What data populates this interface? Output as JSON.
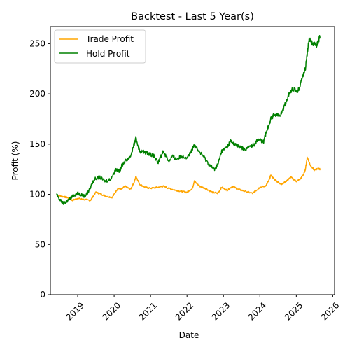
{
  "chart_data": {
    "type": "line",
    "title": "Backtest - Last 5 Year(s)",
    "xlabel": "Date",
    "ylabel": "Profit (%)",
    "xlim": [
      2018.25,
      2026.05
    ],
    "ylim": [
      0,
      267
    ],
    "x_ticks": [
      2019,
      2020,
      2021,
      2022,
      2023,
      2024,
      2025,
      2026
    ],
    "x_tick_labels": [
      "2019",
      "2020",
      "2021",
      "2022",
      "2023",
      "2024",
      "2025",
      "2026"
    ],
    "y_ticks": [
      0,
      50,
      100,
      150,
      200,
      250
    ],
    "y_tick_labels": [
      "0",
      "50",
      "100",
      "150",
      "200",
      "250"
    ],
    "grid": false,
    "legend": "top-left",
    "series": [
      {
        "name": "Trade Profit",
        "color": "#ffa500",
        "x": [
          2018.42,
          2018.55,
          2018.7,
          2018.85,
          2019.0,
          2019.15,
          2019.35,
          2019.5,
          2019.65,
          2019.8,
          2019.95,
          2020.1,
          2020.2,
          2020.3,
          2020.45,
          2020.55,
          2020.6,
          2020.7,
          2020.85,
          2021.0,
          2021.2,
          2021.35,
          2021.5,
          2021.7,
          2021.85,
          2022.0,
          2022.15,
          2022.2,
          2022.35,
          2022.5,
          2022.7,
          2022.85,
          2022.95,
          2023.1,
          2023.25,
          2023.4,
          2023.6,
          2023.8,
          2023.9,
          2024.0,
          2024.15,
          2024.25,
          2024.3,
          2024.4,
          2024.5,
          2024.6,
          2024.75,
          2024.85,
          2025.0,
          2025.1,
          2025.2,
          2025.25,
          2025.3,
          2025.4,
          2025.5,
          2025.6,
          2025.65
        ],
        "values": [
          100,
          98,
          97,
          94,
          96,
          95,
          94,
          102,
          100,
          98,
          97,
          106,
          105,
          108,
          105,
          112,
          118,
          110,
          107,
          106,
          107,
          108,
          106,
          104,
          103,
          102,
          106,
          113,
          108,
          106,
          102,
          101,
          107,
          104,
          108,
          105,
          103,
          101,
          104,
          107,
          108,
          114,
          119,
          115,
          112,
          110,
          114,
          117,
          113,
          115,
          120,
          125,
          137,
          128,
          124,
          126,
          125
        ]
      },
      {
        "name": "Hold Profit",
        "color": "#008000",
        "x": [
          2018.42,
          2018.5,
          2018.6,
          2018.7,
          2018.8,
          2018.9,
          2019.0,
          2019.1,
          2019.2,
          2019.3,
          2019.45,
          2019.6,
          2019.75,
          2019.9,
          2020.05,
          2020.15,
          2020.2,
          2020.3,
          2020.45,
          2020.55,
          2020.6,
          2020.7,
          2020.85,
          2021.0,
          2021.1,
          2021.2,
          2021.35,
          2021.5,
          2021.6,
          2021.7,
          2021.85,
          2022.0,
          2022.1,
          2022.15,
          2022.2,
          2022.3,
          2022.45,
          2022.6,
          2022.75,
          2022.85,
          2022.95,
          2023.1,
          2023.2,
          2023.3,
          2023.45,
          2023.6,
          2023.75,
          2023.85,
          2023.95,
          2024.1,
          2024.2,
          2024.3,
          2024.4,
          2024.55,
          2024.7,
          2024.8,
          2024.9,
          2025.05,
          2025.15,
          2025.25,
          2025.3,
          2025.35,
          2025.45,
          2025.55,
          2025.6,
          2025.65
        ],
        "values": [
          100,
          95,
          91,
          93,
          96,
          99,
          101,
          100,
          98,
          103,
          115,
          117,
          113,
          115,
          125,
          123,
          128,
          133,
          138,
          150,
          156,
          143,
          142,
          140,
          138,
          131,
          143,
          133,
          138,
          135,
          138,
          137,
          141,
          145,
          150,
          144,
          138,
          130,
          125,
          130,
          143,
          147,
          153,
          150,
          147,
          145,
          148,
          150,
          155,
          152,
          165,
          175,
          180,
          178,
          190,
          200,
          205,
          203,
          215,
          225,
          240,
          255,
          250,
          248,
          252,
          257
        ]
      }
    ]
  }
}
